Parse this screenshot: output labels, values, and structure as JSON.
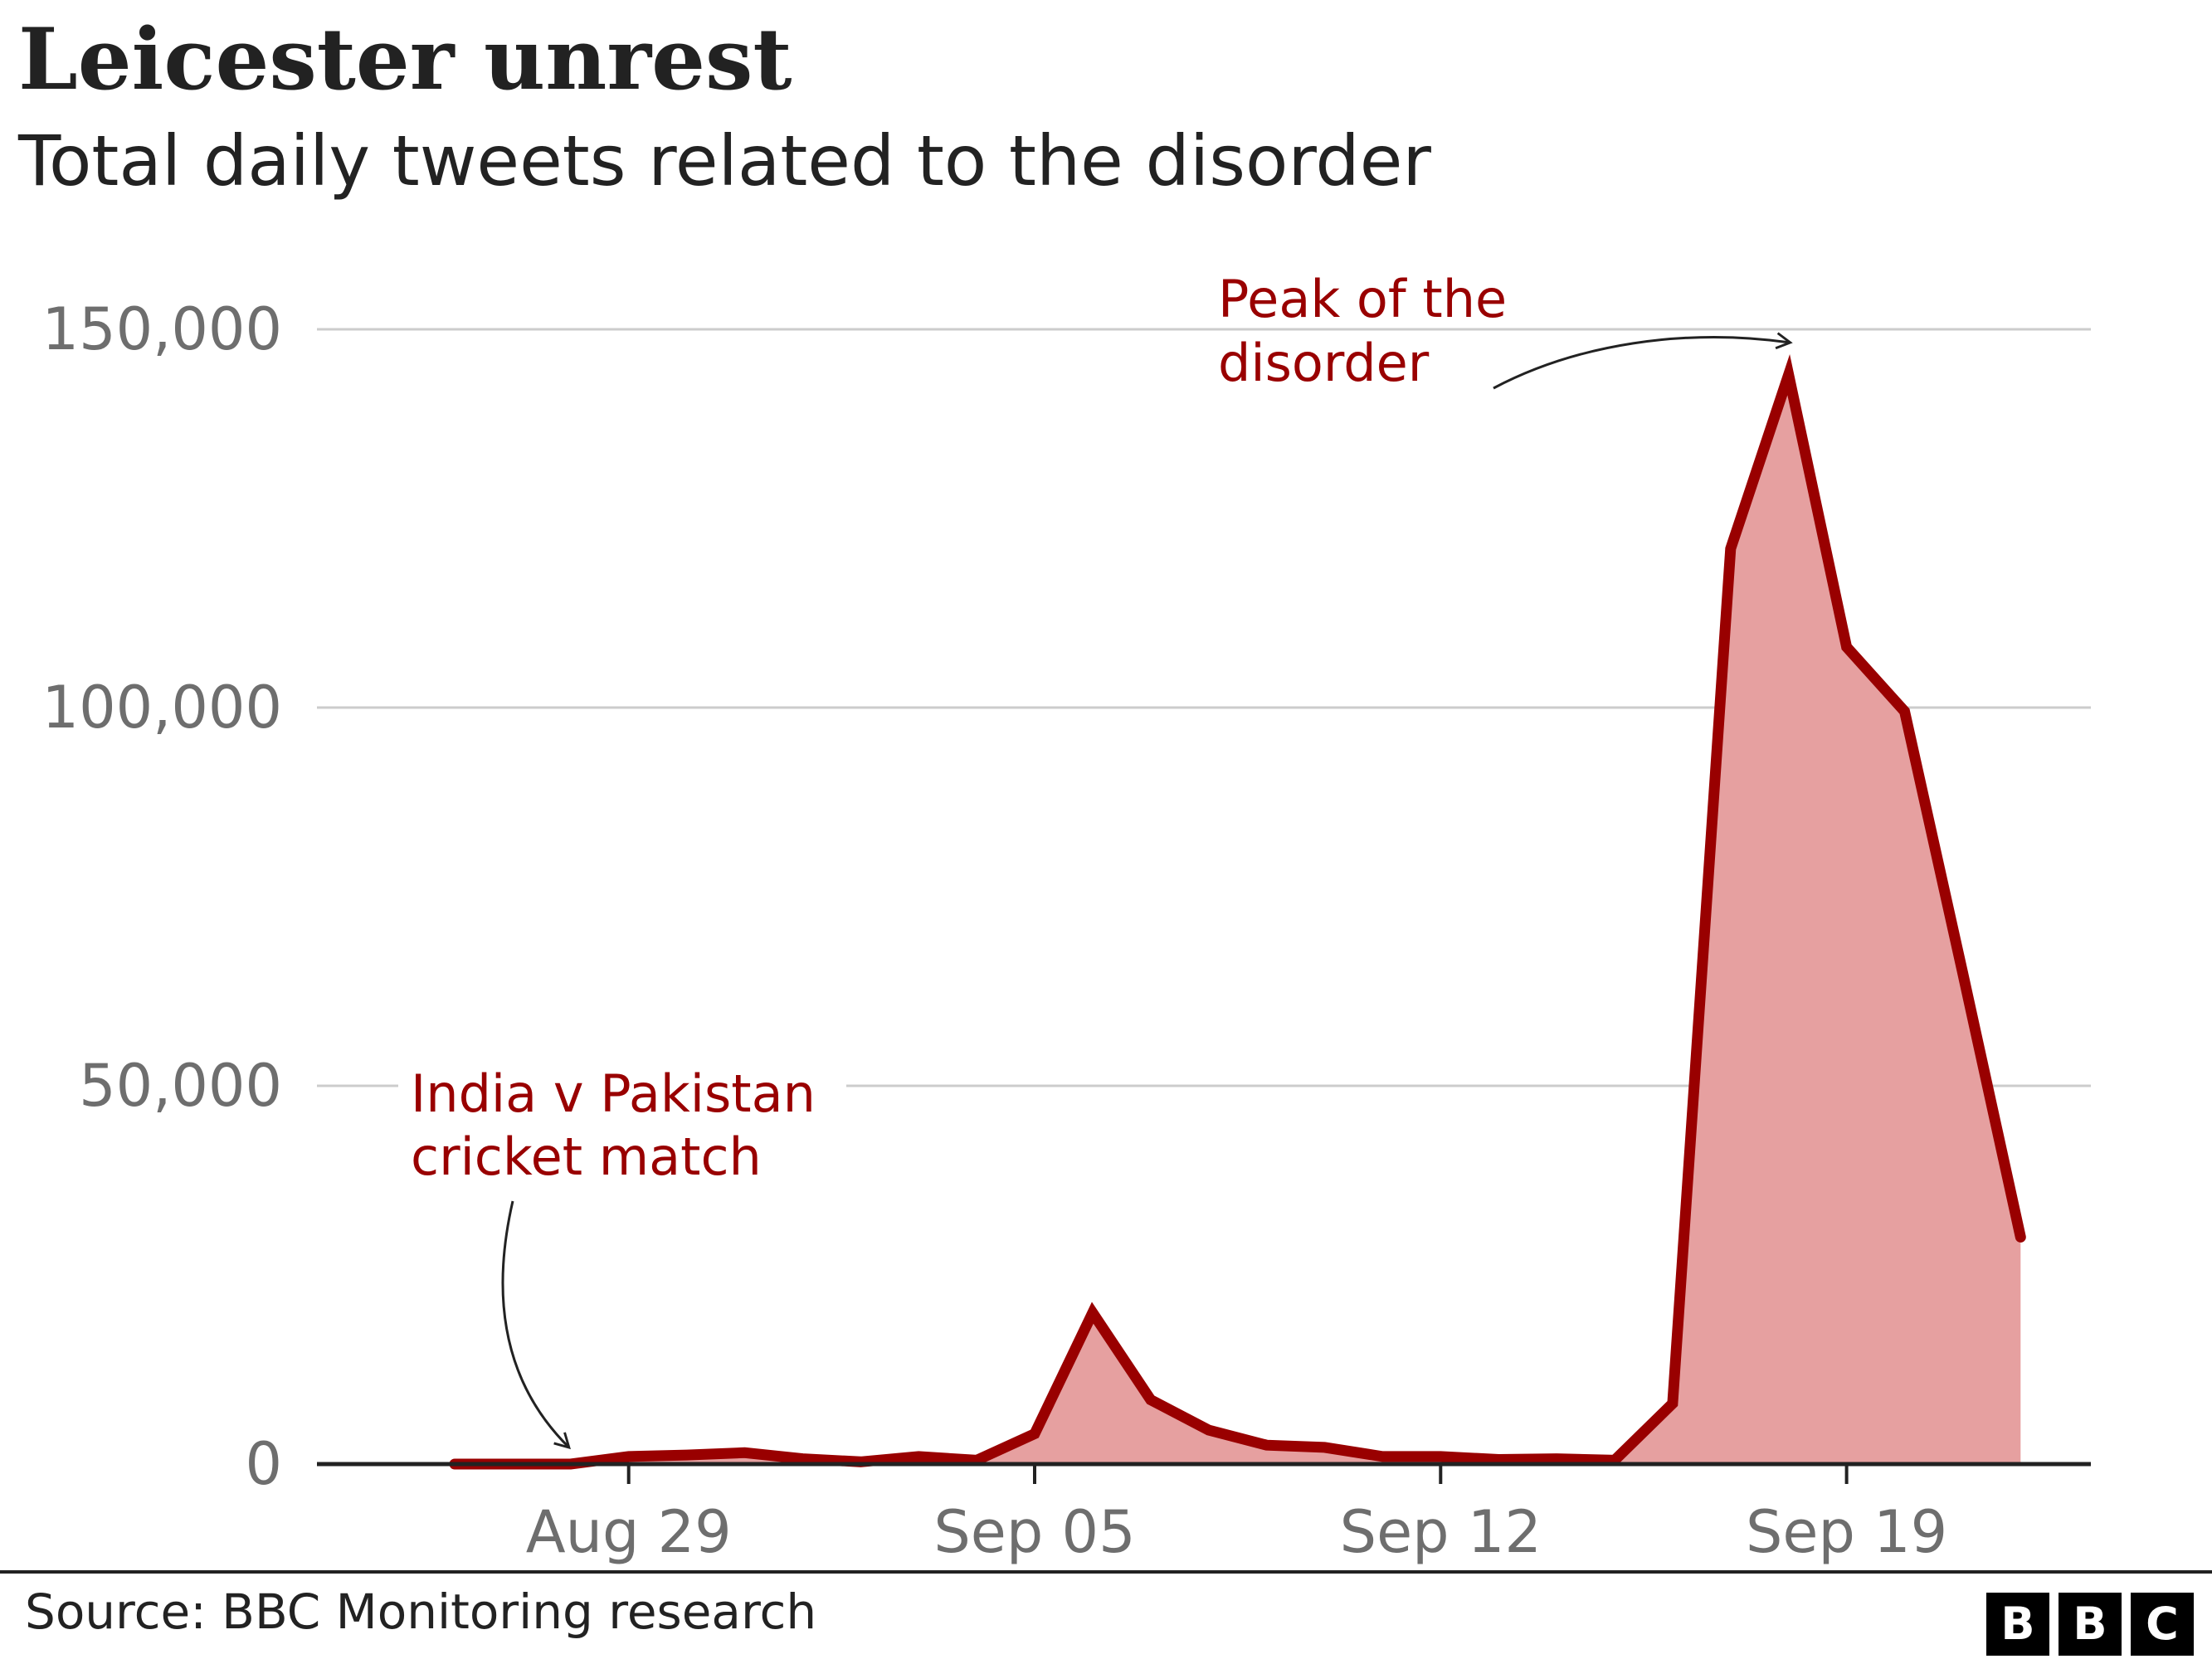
{
  "header": {
    "title": "Leicester unrest",
    "subtitle": "Total daily tweets related to the disorder"
  },
  "footer": {
    "source": "Source: BBC Monitoring research",
    "logo_letters": [
      "B",
      "B",
      "C"
    ]
  },
  "colors": {
    "line": "#990000",
    "area": "#e6a0a0",
    "annotation": "#990000",
    "grid": "#cccccc",
    "baseline": "#222222",
    "tick_text": "#6e6e6e"
  },
  "chart_data": {
    "type": "area",
    "title": "Leicester unrest",
    "subtitle": "Total daily tweets related to the disorder",
    "xlabel": "",
    "ylabel": "",
    "x": [
      "Aug 26",
      "Aug 27",
      "Aug 28",
      "Aug 29",
      "Aug 30",
      "Aug 31",
      "Sep 01",
      "Sep 02",
      "Sep 03",
      "Sep 04",
      "Sep 05",
      "Sep 06",
      "Sep 07",
      "Sep 08",
      "Sep 09",
      "Sep 10",
      "Sep 11",
      "Sep 12",
      "Sep 13",
      "Sep 14",
      "Sep 15",
      "Sep 16",
      "Sep 17",
      "Sep 18",
      "Sep 19",
      "Sep 20",
      "Sep 21",
      "Sep 22"
    ],
    "series": [
      {
        "values": [
          0,
          0,
          0,
          1000,
          1200,
          1500,
          700,
          300,
          1000,
          500,
          4000,
          20000,
          8500,
          4500,
          2500,
          2200,
          1000,
          1000,
          600,
          700,
          500,
          8000,
          121000,
          144000,
          108000,
          99500,
          65000,
          30000
        ]
      }
    ],
    "ylim": [
      0,
      150000
    ],
    "xlim": [
      "Aug 26",
      "Sep 22"
    ],
    "y_ticks": [
      0,
      50000,
      100000,
      150000
    ],
    "y_tick_labels": [
      "0",
      "50,000",
      "100,000",
      "150,000"
    ],
    "x_ticks": [
      "Aug 29",
      "Sep 05",
      "Sep 12",
      "Sep 19"
    ],
    "x_tick_labels": [
      "Aug 29",
      "Sep 05",
      "Sep 12",
      "Sep 19"
    ],
    "grid": "horizontal",
    "legend": "none",
    "annotations": [
      {
        "lines": [
          "India v Pakistan",
          "cricket match"
        ],
        "points_to": "Aug 28"
      },
      {
        "lines": [
          "Peak of the",
          "disorder"
        ],
        "points_to": "Sep 18"
      }
    ]
  }
}
